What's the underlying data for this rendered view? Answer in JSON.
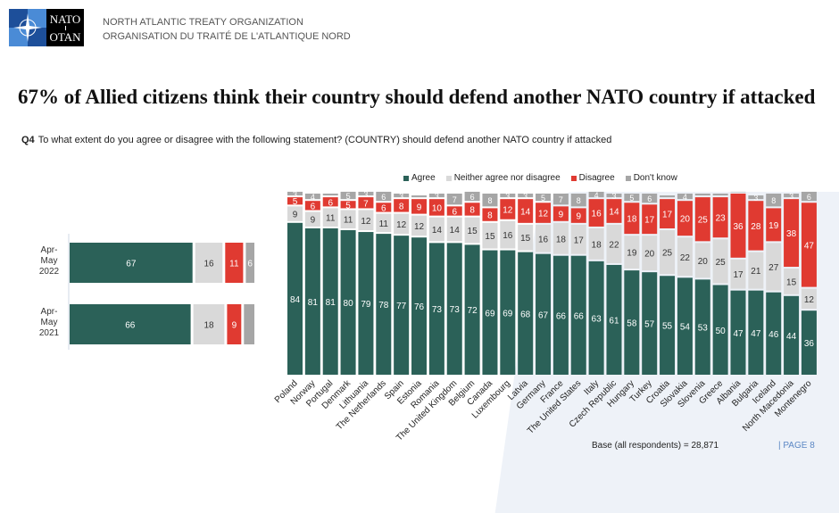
{
  "header": {
    "logo_text_top": "NATO",
    "logo_text_bottom": "OTAN",
    "org_en": "NORTH ATLANTIC TREATY ORGANIZATION",
    "org_fr": "ORGANISATION DU TRAITÉ DE L'ATLANTIQUE NORD"
  },
  "title": "67% of Allied citizens think their country should defend another NATO country if attacked",
  "question": {
    "id": "Q4",
    "text": "To what extent do you agree or disagree with the following statement? (COUNTRY) should defend another NATO country if attacked"
  },
  "legend": [
    {
      "label": "Agree",
      "color": "#2b6158"
    },
    {
      "label": "Neither agree nor disagree",
      "color": "#d9d9d9"
    },
    {
      "label": "Disagree",
      "color": "#e03a31"
    },
    {
      "label": "Don't know",
      "color": "#a6a6a6"
    }
  ],
  "footer": {
    "base": "Base (all respondents) = 28,871",
    "page": "| PAGE 8"
  },
  "chart_data": [
    {
      "type": "bar",
      "orientation": "horizontal-stacked",
      "categories": [
        "Apr-May 2022",
        "Apr-May 2021"
      ],
      "category_lines": [
        [
          "Apr-",
          "May",
          "2022"
        ],
        [
          "Apr-",
          "May",
          "2021"
        ]
      ],
      "series": [
        {
          "name": "Agree",
          "values": [
            67,
            66
          ]
        },
        {
          "name": "Neither agree nor disagree",
          "values": [
            16,
            18
          ]
        },
        {
          "name": "Disagree",
          "values": [
            11,
            9
          ]
        },
        {
          "name": "Don't know",
          "values": [
            6,
            7
          ]
        }
      ],
      "unlabeled": [
        [
          1,
          3
        ]
      ]
    },
    {
      "type": "bar",
      "orientation": "vertical-stacked",
      "categories": [
        "Poland",
        "Norway",
        "Portugal",
        "Denmark",
        "Lithuania",
        "The Netherlands",
        "Spain",
        "Estonia",
        "Romania",
        "The United Kingdom",
        "Belgium",
        "Canada",
        "Luxembourg",
        "Latvia",
        "Germany",
        "France",
        "The United States",
        "Italy",
        "Czech Republic",
        "Hungary",
        "Turkey",
        "Croatia",
        "Slovakia",
        "Slovenia",
        "Greece",
        "Albania",
        "Bulgaria",
        "Iceland",
        "North Macedonia",
        "Montenegro"
      ],
      "series": [
        {
          "name": "Agree",
          "values": [
            84,
            81,
            81,
            80,
            79,
            78,
            77,
            76,
            73,
            73,
            72,
            69,
            69,
            68,
            67,
            66,
            66,
            63,
            61,
            58,
            57,
            55,
            54,
            53,
            50,
            47,
            47,
            46,
            44,
            36
          ]
        },
        {
          "name": "Neither agree nor disagree",
          "values": [
            9,
            9,
            11,
            11,
            12,
            11,
            12,
            12,
            14,
            14,
            15,
            15,
            16,
            15,
            16,
            18,
            17,
            18,
            22,
            19,
            20,
            25,
            22,
            20,
            25,
            17,
            21,
            27,
            15,
            12
          ]
        },
        {
          "name": "Disagree",
          "values": [
            5,
            6,
            6,
            5,
            7,
            6,
            8,
            9,
            10,
            6,
            8,
            8,
            12,
            14,
            12,
            9,
            9,
            16,
            14,
            18,
            17,
            17,
            20,
            25,
            23,
            36,
            28,
            19,
            38,
            47
          ]
        },
        {
          "name": "Don't know",
          "values": [
            3,
            4,
            2,
            5,
            3,
            6,
            3,
            2,
            3,
            7,
            6,
            8,
            3,
            3,
            5,
            7,
            8,
            4,
            3,
            5,
            6,
            2,
            4,
            2,
            2,
            1,
            3,
            8,
            3,
            6
          ]
        }
      ],
      "ylim": [
        0,
        100
      ]
    }
  ]
}
